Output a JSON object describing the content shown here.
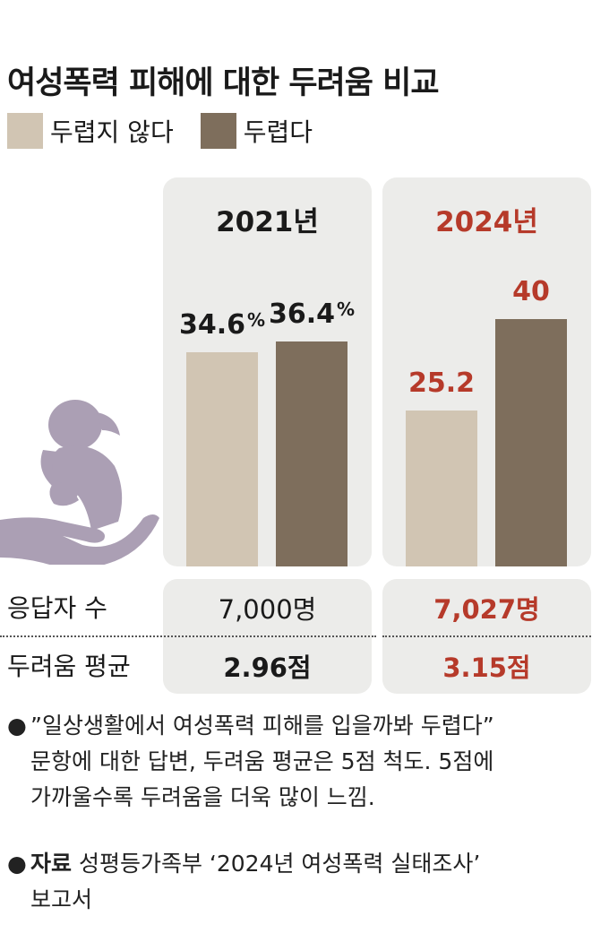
{
  "title": "여성폭력 피해에 대한 두려움 비교",
  "colors": {
    "not_afraid": "#d1c5b3",
    "afraid": "#7e6e5c",
    "highlight": "#b63a2a",
    "icon": "#ab9fb4",
    "panel": "#ececea"
  },
  "chart_data": {
    "type": "bar",
    "categories": [
      "2021년",
      "2024년"
    ],
    "series": [
      {
        "name": "두렵지 않다",
        "values": [
          34.6,
          25.2
        ],
        "labels": [
          "34.6",
          "25.2"
        ]
      },
      {
        "name": "두렵다",
        "values": [
          36.4,
          40
        ],
        "labels": [
          "36.4",
          "40"
        ]
      }
    ],
    "unit_label": "%",
    "ylim": [
      0,
      55
    ]
  },
  "rows": [
    {
      "label": "응답자 수",
      "values": [
        "7,000명",
        "7,027명"
      ]
    },
    {
      "label": "두려움 평균",
      "values": [
        "2.96점",
        "3.15점"
      ]
    }
  ],
  "notes": [
    {
      "bullet": "●",
      "lines": [
        "”일상생활에서 여성폭력 피해를 입을까봐 두렵다”",
        "문항에 대한 답변, 두려움 평균은 5점 척도. 5점에",
        "가까울수록 두려움을 더욱 많이 느낌."
      ]
    },
    {
      "bullet": "●",
      "bold": "자료",
      "lines": [
        " 성평등가족부 ‘2024년 여성폭력 실태조사’",
        "보고서"
      ]
    }
  ],
  "icon": "hand-holding-child-icon"
}
